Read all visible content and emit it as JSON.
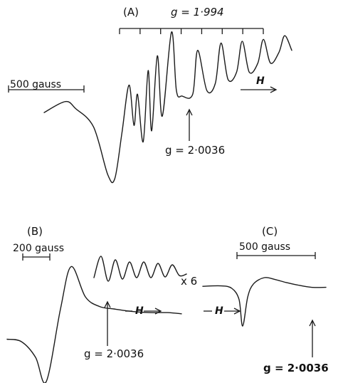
{
  "chart_data": [
    {
      "type": "line",
      "panel": "(A)",
      "title": "",
      "xlabel": "H",
      "ylabel": "",
      "scale_bar_label": "500 gauss",
      "hyperfine_marker_label": "g = 1·994",
      "hyperfine_line_count": 8,
      "reference_label": "g = 2·0036",
      "series": [
        {
          "name": "",
          "x": [
            0,
            30,
            45,
            70,
            90,
            100,
            110,
            120,
            127,
            132,
            140,
            147,
            152,
            160,
            167,
            180,
            187,
            195,
            210,
            217,
            230,
            242,
            250,
            260,
            272,
            280,
            290,
            302,
            310,
            320,
            332,
            340,
            350
          ],
          "y": [
            0.56,
            0.62,
            0.58,
            0.48,
            0.22,
            0.2,
            0.45,
            0.71,
            0.49,
            0.66,
            0.4,
            0.79,
            0.46,
            0.87,
            0.54,
            1.0,
            0.68,
            0.65,
            0.66,
            0.9,
            0.68,
            0.72,
            0.94,
            0.74,
            0.78,
            0.95,
            0.78,
            0.83,
            0.96,
            0.83,
            0.89,
            0.98,
            0.9
          ]
        }
      ]
    },
    {
      "type": "line",
      "panel": "(B)",
      "title": "",
      "xlabel": "H",
      "ylabel": "",
      "scale_bar_label": "200 gauss",
      "gain_label": "x 6",
      "reference_label": "g = 2·0036",
      "series": [
        {
          "name": "",
          "x": [
            0,
            20,
            40,
            55,
            75,
            90,
            110,
            130,
            150,
            175,
            200,
            225,
            245
          ],
          "y": [
            0.35,
            0.33,
            0.2,
            0.0,
            0.6,
            0.95,
            0.7,
            0.62,
            0.6,
            0.58,
            0.57,
            0.57,
            0.56
          ]
        },
        {
          "name": "",
          "x": [
            120,
            130,
            140,
            150,
            160,
            170,
            180,
            190,
            200,
            210,
            220,
            230,
            240,
            250
          ],
          "y": [
            0.3,
            0.6,
            0.25,
            0.55,
            0.28,
            0.52,
            0.3,
            0.52,
            0.3,
            0.5,
            0.31,
            0.48,
            0.33,
            0.35
          ]
        }
      ]
    },
    {
      "type": "line",
      "panel": "(C)",
      "title": "",
      "xlabel": "H",
      "ylabel": "",
      "scale_bar_label": "500 gauss",
      "reference_label": "g = 2·0036",
      "series": [
        {
          "name": "",
          "x": [
            0,
            25,
            40,
            50,
            55,
            62,
            70,
            85,
            100,
            115,
            130,
            150,
            170
          ],
          "y": [
            0.82,
            0.83,
            0.78,
            0.55,
            0.0,
            0.6,
            0.87,
            1.0,
            0.96,
            0.9,
            0.85,
            0.8,
            0.8
          ]
        }
      ]
    }
  ]
}
